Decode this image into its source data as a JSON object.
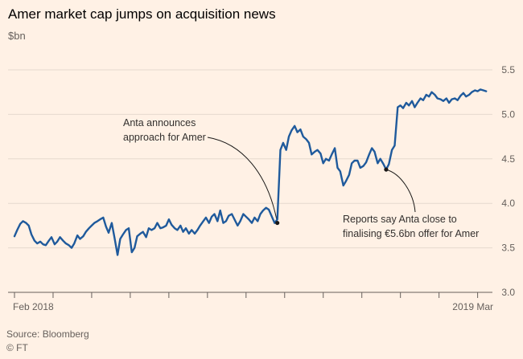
{
  "chart_data": {
    "type": "line",
    "title": "Amer market cap jumps on acquisition news",
    "ylabel": "$bn",
    "ylim": [
      3.0,
      5.5
    ],
    "yticks": [
      "3.0",
      "3.5",
      "4.0",
      "4.5",
      "5.0",
      "5.5"
    ],
    "xlim": [
      0,
      12.3
    ],
    "x_tick_count": 13,
    "x_start_label": "Feb 2018",
    "x_end_label": "2019 Mar",
    "grid": true,
    "series": [
      {
        "name": "Amer market cap",
        "color": "#1f5a9c",
        "points": [
          [
            0.0,
            3.63
          ],
          [
            0.07,
            3.7
          ],
          [
            0.15,
            3.77
          ],
          [
            0.22,
            3.8
          ],
          [
            0.3,
            3.78
          ],
          [
            0.37,
            3.75
          ],
          [
            0.44,
            3.65
          ],
          [
            0.52,
            3.58
          ],
          [
            0.59,
            3.55
          ],
          [
            0.67,
            3.57
          ],
          [
            0.74,
            3.54
          ],
          [
            0.81,
            3.53
          ],
          [
            0.89,
            3.58
          ],
          [
            0.96,
            3.62
          ],
          [
            1.04,
            3.54
          ],
          [
            1.11,
            3.57
          ],
          [
            1.18,
            3.62
          ],
          [
            1.26,
            3.58
          ],
          [
            1.33,
            3.55
          ],
          [
            1.41,
            3.53
          ],
          [
            1.48,
            3.5
          ],
          [
            1.55,
            3.55
          ],
          [
            1.63,
            3.64
          ],
          [
            1.7,
            3.6
          ],
          [
            1.78,
            3.63
          ],
          [
            1.85,
            3.68
          ],
          [
            1.93,
            3.72
          ],
          [
            2.0,
            3.75
          ],
          [
            2.07,
            3.78
          ],
          [
            2.15,
            3.8
          ],
          [
            2.22,
            3.82
          ],
          [
            2.3,
            3.84
          ],
          [
            2.37,
            3.74
          ],
          [
            2.44,
            3.67
          ],
          [
            2.52,
            3.78
          ],
          [
            2.59,
            3.62
          ],
          [
            2.67,
            3.42
          ],
          [
            2.74,
            3.6
          ],
          [
            2.81,
            3.65
          ],
          [
            2.89,
            3.7
          ],
          [
            2.96,
            3.72
          ],
          [
            3.04,
            3.45
          ],
          [
            3.11,
            3.5
          ],
          [
            3.18,
            3.63
          ],
          [
            3.26,
            3.66
          ],
          [
            3.33,
            3.68
          ],
          [
            3.41,
            3.62
          ],
          [
            3.48,
            3.72
          ],
          [
            3.55,
            3.7
          ],
          [
            3.63,
            3.72
          ],
          [
            3.7,
            3.78
          ],
          [
            3.78,
            3.72
          ],
          [
            3.85,
            3.73
          ],
          [
            3.93,
            3.75
          ],
          [
            4.0,
            3.82
          ],
          [
            4.07,
            3.76
          ],
          [
            4.15,
            3.72
          ],
          [
            4.22,
            3.7
          ],
          [
            4.3,
            3.75
          ],
          [
            4.37,
            3.68
          ],
          [
            4.44,
            3.72
          ],
          [
            4.52,
            3.66
          ],
          [
            4.59,
            3.7
          ],
          [
            4.67,
            3.66
          ],
          [
            4.74,
            3.7
          ],
          [
            4.81,
            3.75
          ],
          [
            4.89,
            3.8
          ],
          [
            4.96,
            3.84
          ],
          [
            5.04,
            3.78
          ],
          [
            5.11,
            3.85
          ],
          [
            5.18,
            3.88
          ],
          [
            5.26,
            3.8
          ],
          [
            5.33,
            3.92
          ],
          [
            5.41,
            3.78
          ],
          [
            5.48,
            3.8
          ],
          [
            5.55,
            3.86
          ],
          [
            5.63,
            3.88
          ],
          [
            5.7,
            3.82
          ],
          [
            5.78,
            3.75
          ],
          [
            5.85,
            3.8
          ],
          [
            5.93,
            3.88
          ],
          [
            6.0,
            3.85
          ],
          [
            6.07,
            3.82
          ],
          [
            6.15,
            3.78
          ],
          [
            6.22,
            3.84
          ],
          [
            6.3,
            3.8
          ],
          [
            6.37,
            3.88
          ],
          [
            6.44,
            3.92
          ],
          [
            6.52,
            3.95
          ],
          [
            6.59,
            3.93
          ],
          [
            6.67,
            3.85
          ],
          [
            6.74,
            3.78
          ],
          [
            6.81,
            3.82
          ],
          [
            6.89,
            4.6
          ],
          [
            6.96,
            4.68
          ],
          [
            7.04,
            4.6
          ],
          [
            7.11,
            4.75
          ],
          [
            7.18,
            4.82
          ],
          [
            7.26,
            4.87
          ],
          [
            7.33,
            4.8
          ],
          [
            7.41,
            4.83
          ],
          [
            7.48,
            4.75
          ],
          [
            7.56,
            4.72
          ],
          [
            7.63,
            4.68
          ],
          [
            7.7,
            4.55
          ],
          [
            7.78,
            4.58
          ],
          [
            7.85,
            4.6
          ],
          [
            7.93,
            4.56
          ],
          [
            8.0,
            4.45
          ],
          [
            8.07,
            4.5
          ],
          [
            8.15,
            4.48
          ],
          [
            8.22,
            4.55
          ],
          [
            8.3,
            4.62
          ],
          [
            8.37,
            4.4
          ],
          [
            8.44,
            4.36
          ],
          [
            8.52,
            4.2
          ],
          [
            8.59,
            4.25
          ],
          [
            8.67,
            4.32
          ],
          [
            8.74,
            4.45
          ],
          [
            8.81,
            4.48
          ],
          [
            8.89,
            4.48
          ],
          [
            8.96,
            4.4
          ],
          [
            9.04,
            4.42
          ],
          [
            9.11,
            4.46
          ],
          [
            9.19,
            4.55
          ],
          [
            9.26,
            4.62
          ],
          [
            9.33,
            4.58
          ],
          [
            9.41,
            4.45
          ],
          [
            9.48,
            4.5
          ],
          [
            9.56,
            4.44
          ],
          [
            9.63,
            4.38
          ],
          [
            9.7,
            4.44
          ],
          [
            9.78,
            4.6
          ],
          [
            9.85,
            4.65
          ],
          [
            9.93,
            5.08
          ],
          [
            10.0,
            5.1
          ],
          [
            10.07,
            5.07
          ],
          [
            10.15,
            5.13
          ],
          [
            10.22,
            5.1
          ],
          [
            10.3,
            5.15
          ],
          [
            10.37,
            5.08
          ],
          [
            10.44,
            5.13
          ],
          [
            10.52,
            5.18
          ],
          [
            10.59,
            5.16
          ],
          [
            10.67,
            5.22
          ],
          [
            10.74,
            5.2
          ],
          [
            10.81,
            5.25
          ],
          [
            10.89,
            5.22
          ],
          [
            10.96,
            5.18
          ],
          [
            11.04,
            5.17
          ],
          [
            11.11,
            5.15
          ],
          [
            11.19,
            5.18
          ],
          [
            11.26,
            5.13
          ],
          [
            11.33,
            5.17
          ],
          [
            11.41,
            5.18
          ],
          [
            11.48,
            5.16
          ],
          [
            11.56,
            5.21
          ],
          [
            11.63,
            5.24
          ],
          [
            11.7,
            5.2
          ],
          [
            11.78,
            5.22
          ],
          [
            11.85,
            5.25
          ],
          [
            11.93,
            5.27
          ],
          [
            12.0,
            5.26
          ],
          [
            12.07,
            5.28
          ],
          [
            12.15,
            5.27
          ],
          [
            12.22,
            5.26
          ]
        ]
      }
    ],
    "annotations": [
      {
        "name": "anta-approach",
        "lines": [
          "Anta announces",
          "approach for Amer"
        ],
        "point": [
          6.81,
          3.78
        ]
      },
      {
        "name": "reports-close",
        "lines": [
          "Reports say Anta close to",
          "finalising €5.6bn offer for Amer"
        ],
        "point": [
          9.63,
          4.38
        ]
      }
    ]
  },
  "footer": {
    "source": "Source: Bloomberg",
    "credit": "© FT"
  }
}
